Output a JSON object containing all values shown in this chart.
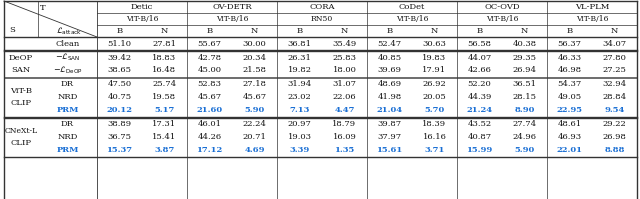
{
  "col_groups": [
    "Detic",
    "OV-DETR",
    "CORA",
    "CoDet",
    "OC-OVD",
    "VL-PLM"
  ],
  "col_subheaders": [
    "ViT-B/16",
    "ViT-B/16",
    "RN50",
    "ViT-B/16",
    "ViT-B/16",
    "ViT-B/16"
  ],
  "row_groups": [
    {
      "s_labels": [
        ""
      ],
      "rows": [
        {
          "attack": "Clean",
          "vals": [
            "51.10",
            "27.81",
            "55.67",
            "30.00",
            "36.81",
            "35.49",
            "52.47",
            "30.63",
            "56.58",
            "40.38",
            "56.37",
            "34.07"
          ],
          "blue": false
        }
      ]
    },
    {
      "s_labels": [
        "SAN",
        "DeOP"
      ],
      "rows": [
        {
          "attack": "-L_SAN",
          "vals": [
            "39.42",
            "18.83",
            "42.78",
            "20.34",
            "26.31",
            "25.83",
            "40.85",
            "19.83",
            "44.07",
            "29.35",
            "46.33",
            "27.80"
          ],
          "blue": false
        },
        {
          "attack": "-L_DeOP",
          "vals": [
            "38.65",
            "16.48",
            "45.00",
            "21.58",
            "19.82",
            "18.00",
            "39.69",
            "17.91",
            "42.66",
            "26.94",
            "46.98",
            "27.25"
          ],
          "blue": false
        }
      ]
    },
    {
      "s_labels": [
        "CLIP",
        "ViT-B"
      ],
      "rows": [
        {
          "attack": "DR",
          "vals": [
            "47.50",
            "25.74",
            "52.83",
            "27.18",
            "31.94",
            "31.07",
            "48.69",
            "26.92",
            "52.20",
            "36.51",
            "54.37",
            "32.94"
          ],
          "blue": false
        },
        {
          "attack": "NRD",
          "vals": [
            "40.75",
            "19.58",
            "45.67",
            "45.67",
            "23.02",
            "22.06",
            "41.98",
            "20.05",
            "44.39",
            "28.15",
            "49.05",
            "28.84"
          ],
          "blue": false
        },
        {
          "attack": "PRM",
          "vals": [
            "20.12",
            "5.17",
            "21.60",
            "5.90",
            "7.13",
            "4.47",
            "21.04",
            "5.70",
            "21.24",
            "8.90",
            "22.95",
            "9.54"
          ],
          "blue": true
        }
      ]
    },
    {
      "s_labels": [
        "CLIP",
        "CNeXt-L"
      ],
      "rows": [
        {
          "attack": "DR",
          "vals": [
            "38.89",
            "17.31",
            "46.01",
            "22.24",
            "20.97",
            "18.79",
            "39.87",
            "18.39",
            "43.52",
            "27.74",
            "48.61",
            "29.22"
          ],
          "blue": false
        },
        {
          "attack": "NRD",
          "vals": [
            "36.75",
            "15.41",
            "44.26",
            "20.71",
            "19.03",
            "16.09",
            "37.97",
            "16.16",
            "40.87",
            "24.96",
            "46.93",
            "26.98"
          ],
          "blue": false
        },
        {
          "attack": "PRM",
          "vals": [
            "15.37",
            "3.87",
            "17.12",
            "4.69",
            "3.39",
            "1.35",
            "15.61",
            "3.71",
            "15.99",
            "5.90",
            "22.01",
            "8.88"
          ],
          "blue": true
        }
      ]
    }
  ],
  "blue_color": "#1a6fd4",
  "text_color": "#111111",
  "line_color": "#333333"
}
